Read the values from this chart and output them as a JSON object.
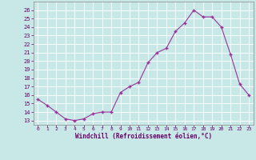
{
  "x": [
    0,
    1,
    2,
    3,
    4,
    5,
    6,
    7,
    8,
    9,
    10,
    11,
    12,
    13,
    14,
    15,
    16,
    17,
    18,
    19,
    20,
    21,
    22,
    23
  ],
  "y": [
    15.5,
    14.8,
    14.0,
    13.2,
    13.0,
    13.2,
    13.8,
    14.0,
    14.0,
    16.3,
    17.0,
    17.5,
    19.8,
    21.0,
    21.5,
    23.5,
    24.5,
    26.0,
    25.2,
    25.2,
    24.0,
    20.8,
    17.3,
    16.0
  ],
  "line_color": "#993399",
  "marker_color": "#993399",
  "bg_color": "#c8e8e8",
  "grid_color": "#aabbbb",
  "xlabel": "Windchill (Refroidissement éolien,°C)",
  "xlabel_color": "#660066",
  "tick_color": "#660066",
  "ylim_min": 12.5,
  "ylim_max": 27.0,
  "yticks": [
    13,
    14,
    15,
    16,
    17,
    18,
    19,
    20,
    21,
    22,
    23,
    24,
    25,
    26
  ],
  "xticks": [
    0,
    1,
    2,
    3,
    4,
    5,
    6,
    7,
    8,
    9,
    10,
    11,
    12,
    13,
    14,
    15,
    16,
    17,
    18,
    19,
    20,
    21,
    22,
    23
  ]
}
